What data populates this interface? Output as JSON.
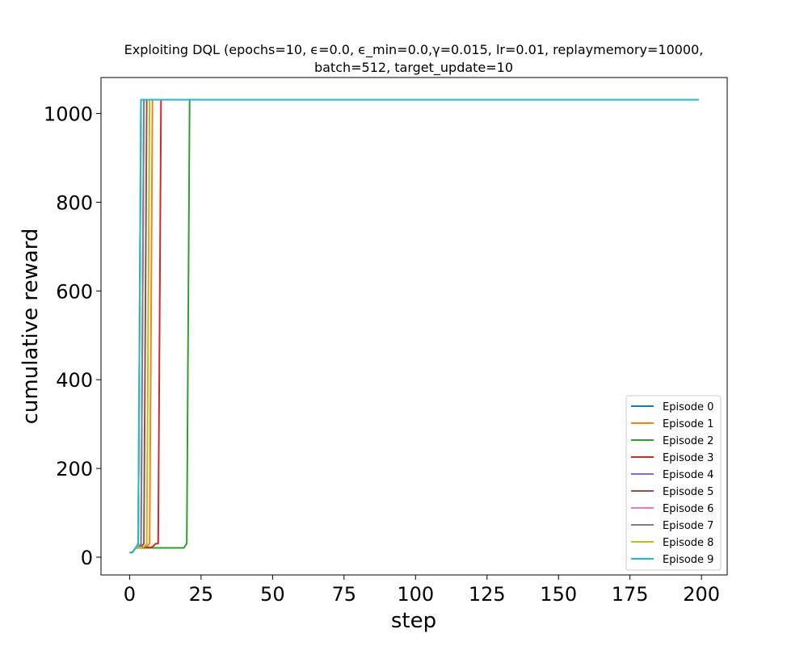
{
  "chart_data": {
    "type": "line",
    "title_lines": [
      "Exploiting DQL (epochs=10, ϵ=0.0, ϵ_min=0.0,γ=0.015, lr=0.01, replaymemory=10000,",
      "batch=512, target_update=10"
    ],
    "xlabel": "step",
    "ylabel": "cumulative reward",
    "xlim": [
      -10,
      209
    ],
    "ylim": [
      -40,
      1081
    ],
    "xticks": [
      0,
      25,
      50,
      75,
      100,
      125,
      150,
      175,
      200
    ],
    "yticks": [
      0,
      200,
      400,
      600,
      800,
      1000
    ],
    "grid": false,
    "legend_position": "lower-right",
    "series": [
      {
        "name": "Episode 0",
        "color": "#1f77b4",
        "x": [
          0,
          1,
          2,
          3,
          4,
          199
        ],
        "y": [
          10,
          11,
          20,
          21,
          1031,
          1031
        ]
      },
      {
        "name": "Episode 1",
        "color": "#ff7f0e",
        "x": [
          0,
          1,
          2,
          3,
          4,
          5,
          6,
          7,
          8,
          199
        ],
        "y": [
          10,
          11,
          20,
          21,
          22,
          23,
          24,
          31,
          1031,
          1031
        ]
      },
      {
        "name": "Episode 2",
        "color": "#2ca02c",
        "x": [
          0,
          1,
          2,
          3,
          5,
          10,
          15,
          19,
          20,
          21,
          199
        ],
        "y": [
          10,
          11,
          20,
          21,
          21,
          21,
          21,
          21,
          31,
          1031,
          1031
        ]
      },
      {
        "name": "Episode 3",
        "color": "#d62728",
        "x": [
          0,
          1,
          2,
          3,
          4,
          5,
          6,
          7,
          8,
          9,
          10,
          11,
          199
        ],
        "y": [
          10,
          11,
          20,
          21,
          22,
          22,
          22,
          22,
          23,
          30,
          31,
          1031,
          1031
        ]
      },
      {
        "name": "Episode 4",
        "color": "#9467bd",
        "x": [
          0,
          1,
          2,
          3,
          4,
          5,
          199
        ],
        "y": [
          10,
          11,
          20,
          21,
          22,
          1031,
          1031
        ]
      },
      {
        "name": "Episode 5",
        "color": "#8c564b",
        "x": [
          0,
          1,
          2,
          3,
          4,
          5,
          6,
          199
        ],
        "y": [
          10,
          11,
          20,
          21,
          22,
          31,
          1031,
          1031
        ]
      },
      {
        "name": "Episode 6",
        "color": "#e377c2",
        "x": [
          0,
          1,
          2,
          3,
          4,
          199
        ],
        "y": [
          10,
          11,
          20,
          21,
          1031,
          1031
        ]
      },
      {
        "name": "Episode 7",
        "color": "#7f7f7f",
        "x": [
          0,
          1,
          2,
          3,
          4,
          5,
          199
        ],
        "y": [
          10,
          11,
          20,
          21,
          31,
          1031,
          1031
        ]
      },
      {
        "name": "Episode 8",
        "color": "#bcbd22",
        "x": [
          0,
          1,
          2,
          3,
          4,
          5,
          6,
          7,
          199
        ],
        "y": [
          10,
          11,
          20,
          21,
          22,
          23,
          30,
          1031,
          1031
        ]
      },
      {
        "name": "Episode 9",
        "color": "#17becf",
        "x": [
          0,
          1,
          2,
          3,
          4,
          199
        ],
        "y": [
          10,
          11,
          20,
          31,
          1031,
          1031
        ]
      }
    ]
  }
}
